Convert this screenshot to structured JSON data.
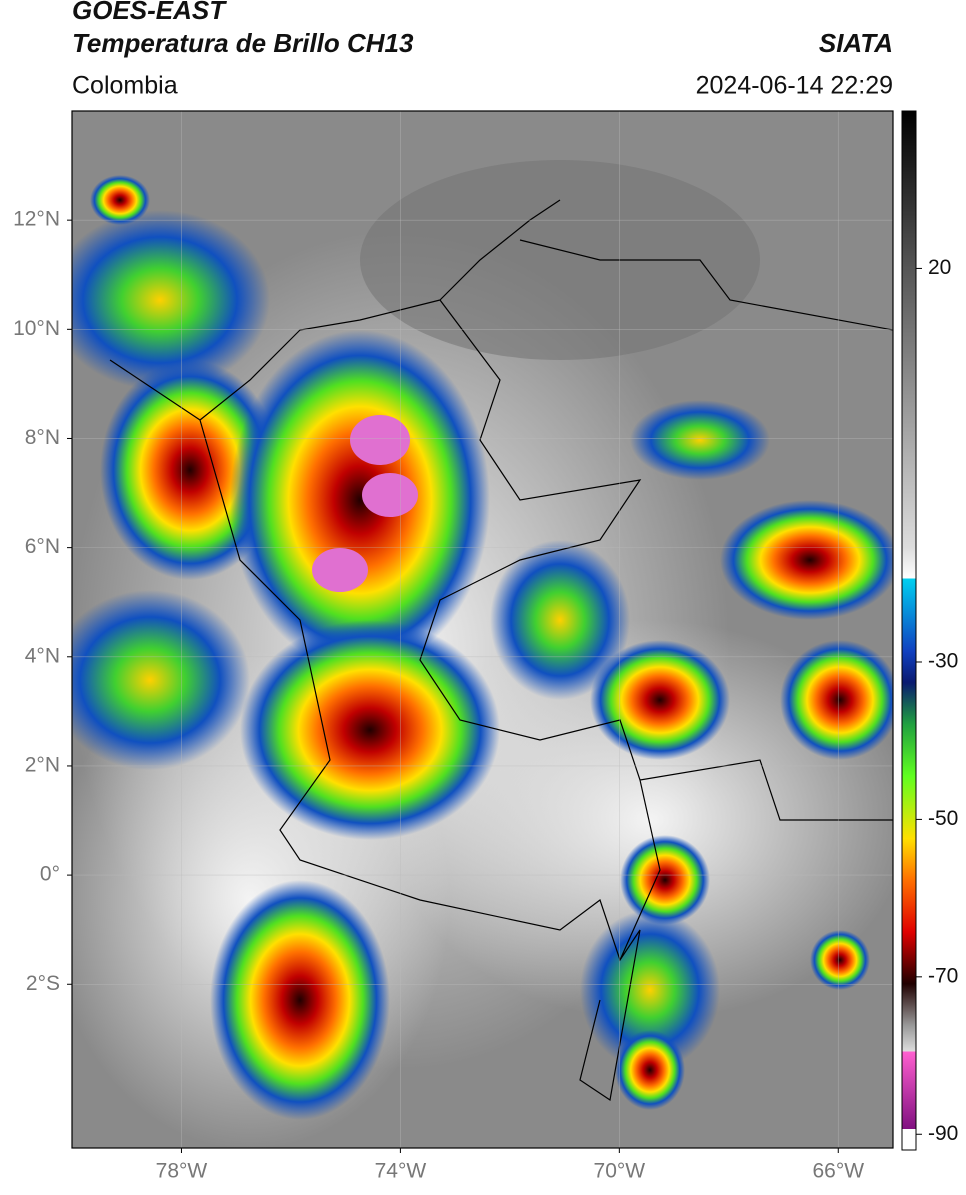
{
  "header": {
    "title": "GOES-EAST",
    "subtitle": "Temperatura de Brillo CH13",
    "source": "SIATA",
    "region": "Colombia",
    "datetime": "2024-06-14 22:29"
  },
  "map": {
    "lon_lim": [
      -80,
      -65
    ],
    "lat_lim": [
      -5,
      14
    ],
    "lon_ticks": [
      {
        "value": -78,
        "label": "78°W"
      },
      {
        "value": -74,
        "label": "74°W"
      },
      {
        "value": -70,
        "label": "70°W"
      },
      {
        "value": -66,
        "label": "66°W"
      }
    ],
    "lat_ticks": [
      {
        "value": 12,
        "label": "12°N"
      },
      {
        "value": 10,
        "label": "10°N"
      },
      {
        "value": 8,
        "label": "8°N"
      },
      {
        "value": 6,
        "label": "6°N"
      },
      {
        "value": 4,
        "label": "4°N"
      },
      {
        "value": 2,
        "label": "2°N"
      },
      {
        "value": 0,
        "label": "0°"
      },
      {
        "value": -2,
        "label": "2°S"
      }
    ],
    "grid": true
  },
  "colorbar": {
    "lim": [
      -92,
      40
    ],
    "ticks": [
      20,
      -30,
      -50,
      -70,
      -90
    ]
  }
}
